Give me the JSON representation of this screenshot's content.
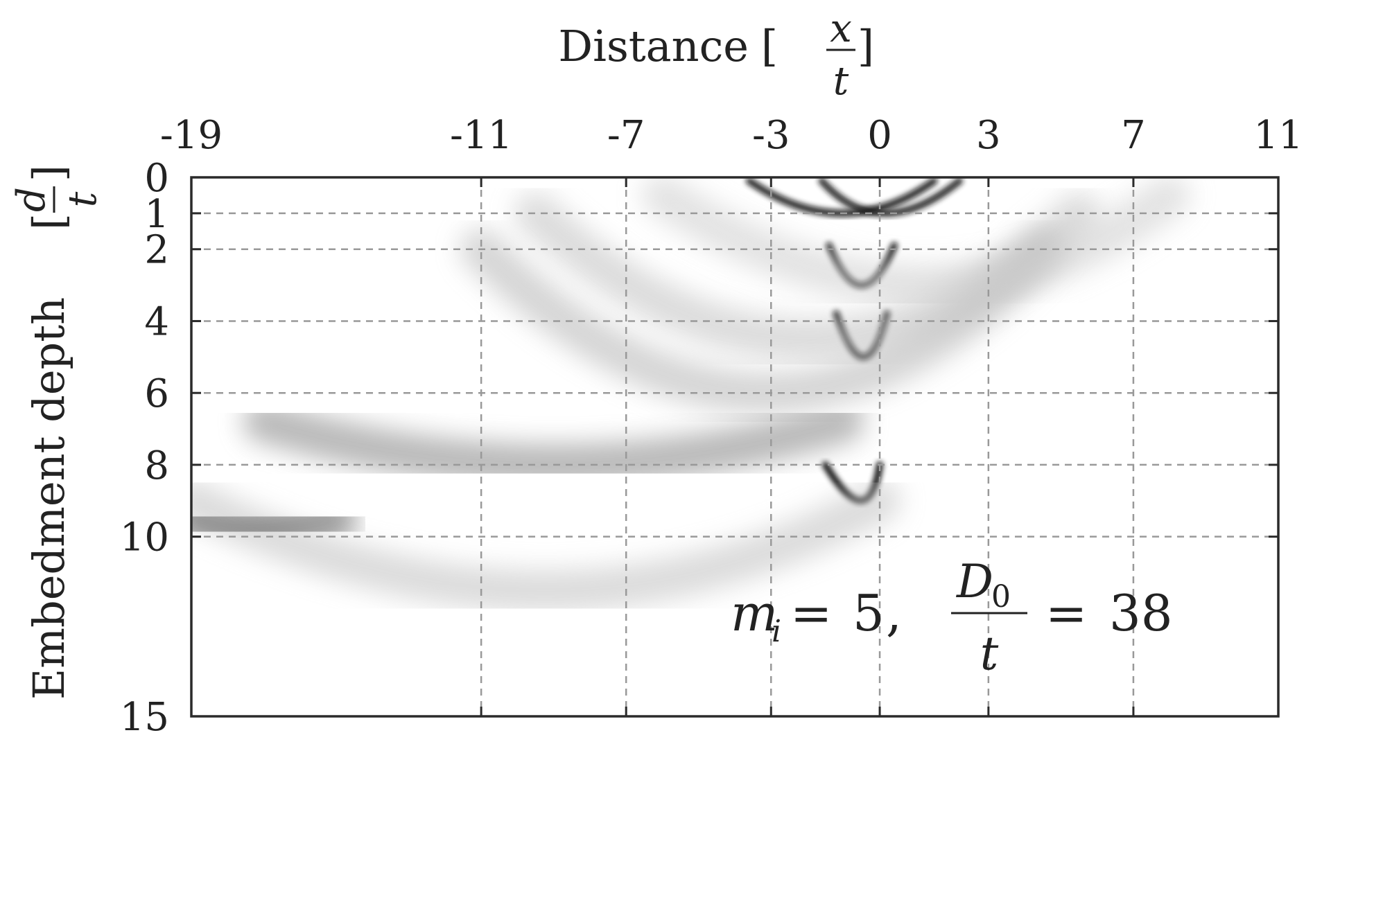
{
  "chart_data": {
    "type": "heatmap",
    "colormap": "grayscale",
    "title": "",
    "xlabel": {
      "text": "Distance",
      "fraction_numerator": "x",
      "fraction_denominator": "t"
    },
    "ylabel": {
      "text": "Embedment depth",
      "fraction_numerator": "d",
      "fraction_denominator": "t"
    },
    "x_axis_position": "top",
    "y_axis_direction": "down",
    "xlim": [
      -19,
      11
    ],
    "ylim": [
      0,
      15
    ],
    "x_ticks": [
      -19,
      -11,
      -7,
      -3,
      0,
      3,
      7,
      11
    ],
    "x_tick_labels": [
      "-19",
      "-11",
      "-7",
      "-3",
      "0",
      "3",
      "7",
      "11"
    ],
    "y_ticks": [
      0,
      1,
      2,
      4,
      6,
      8,
      10,
      15
    ],
    "y_tick_labels": [
      "0",
      "1",
      "2",
      "4",
      "6",
      "8",
      "10",
      "15"
    ],
    "grid": true,
    "grid_style": "dashed",
    "annotation": {
      "lhs_symbol": "m",
      "lhs_subscript": "i",
      "lhs_value": "5",
      "rhs_numerator": "D",
      "rhs_numerator_subscript": "0",
      "rhs_denominator": "t",
      "rhs_value": "38"
    },
    "features": [
      {
        "kind": "band",
        "depth": 1,
        "x_left": -3.6,
        "x_mid": -1,
        "x_right": 1.5,
        "sag": 0.9,
        "darkness": 0.95
      },
      {
        "kind": "band",
        "depth": 1,
        "x_left": -1.6,
        "x_mid": 0,
        "x_right": 2.2,
        "sag": 0.9,
        "darkness": 0.9
      },
      {
        "kind": "band",
        "depth": 3,
        "x_left": -1.4,
        "x_mid": -0.5,
        "x_right": 0.4,
        "sag": 1.1,
        "darkness": 0.95
      },
      {
        "kind": "band",
        "depth": 5,
        "x_left": -1.2,
        "x_mid": -0.4,
        "x_right": 0.2,
        "sag": 1.2,
        "darkness": 0.95
      },
      {
        "kind": "band",
        "depth": 9,
        "x_left": -1.5,
        "x_mid": -0.3,
        "x_right": 0,
        "sag": 1.0,
        "darkness": 1.0
      },
      {
        "kind": "band",
        "depth": 4.5,
        "x_left": -9.5,
        "x_mid": -2,
        "x_right": 5.5,
        "sag": 3.5,
        "darkness": 0.25
      },
      {
        "kind": "band",
        "depth": 6,
        "x_left": -11,
        "x_mid": -3,
        "x_right": 4.5,
        "sag": 4.0,
        "darkness": 0.3
      },
      {
        "kind": "band",
        "depth": 3,
        "x_left": -6,
        "x_mid": 1.5,
        "x_right": 8,
        "sag": 2.5,
        "darkness": 0.2
      },
      {
        "kind": "band",
        "depth": 8,
        "x_left": -17,
        "x_mid": -9,
        "x_right": -1,
        "sag": 1.2,
        "darkness": 0.5
      },
      {
        "kind": "band",
        "depth": 11.5,
        "x_left": -19,
        "x_mid": -9,
        "x_right": 0,
        "sag": 2.5,
        "darkness": 0.25
      },
      {
        "kind": "band",
        "depth": 9.8,
        "x_left": -19,
        "x_mid": -18,
        "x_right": -15,
        "sag": 0.3,
        "darkness": 0.7
      }
    ]
  }
}
